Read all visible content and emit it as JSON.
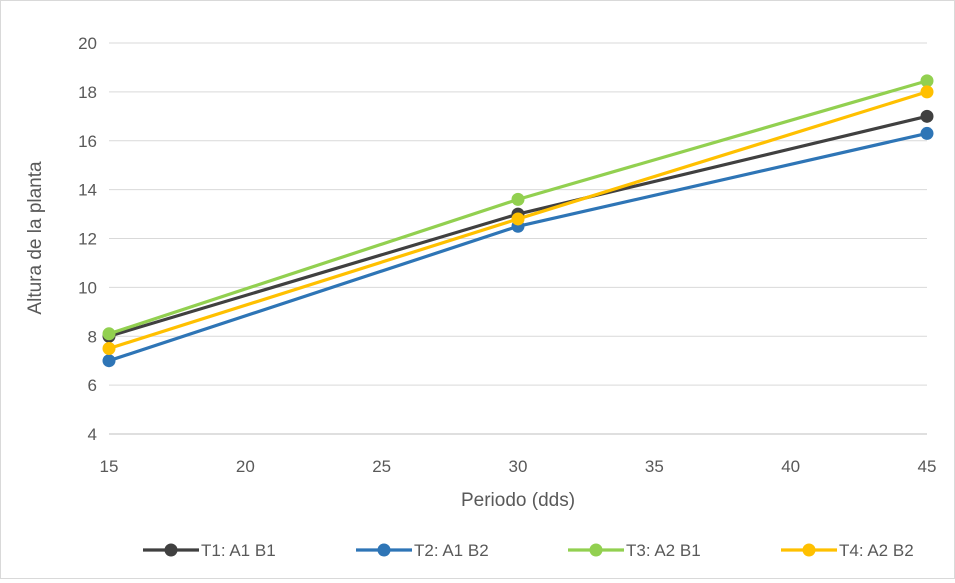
{
  "chart_data": {
    "type": "line",
    "title": "",
    "xlabel": "Periodo (dds)",
    "ylabel": "Altura de la planta",
    "xlim": [
      15,
      45
    ],
    "ylim": [
      4,
      20
    ],
    "xticks": [
      15,
      20,
      25,
      30,
      35,
      40,
      45
    ],
    "yticks": [
      4,
      6,
      8,
      10,
      12,
      14,
      16,
      18,
      20
    ],
    "grid": "horizontal",
    "legend_position": "bottom",
    "x": [
      15,
      30,
      45
    ],
    "series": [
      {
        "name": "T1: A1 B1",
        "color": "#404040",
        "values": [
          8.0,
          13.0,
          17.0
        ]
      },
      {
        "name": "T2: A1 B2",
        "color": "#2e75b6",
        "values": [
          7.0,
          12.5,
          16.3
        ]
      },
      {
        "name": "T3: A2 B1",
        "color": "#92d050",
        "values": [
          8.1,
          13.6,
          18.45
        ]
      },
      {
        "name": "T4: A2 B2",
        "color": "#ffc000",
        "values": [
          7.5,
          12.8,
          18.0
        ]
      }
    ]
  }
}
